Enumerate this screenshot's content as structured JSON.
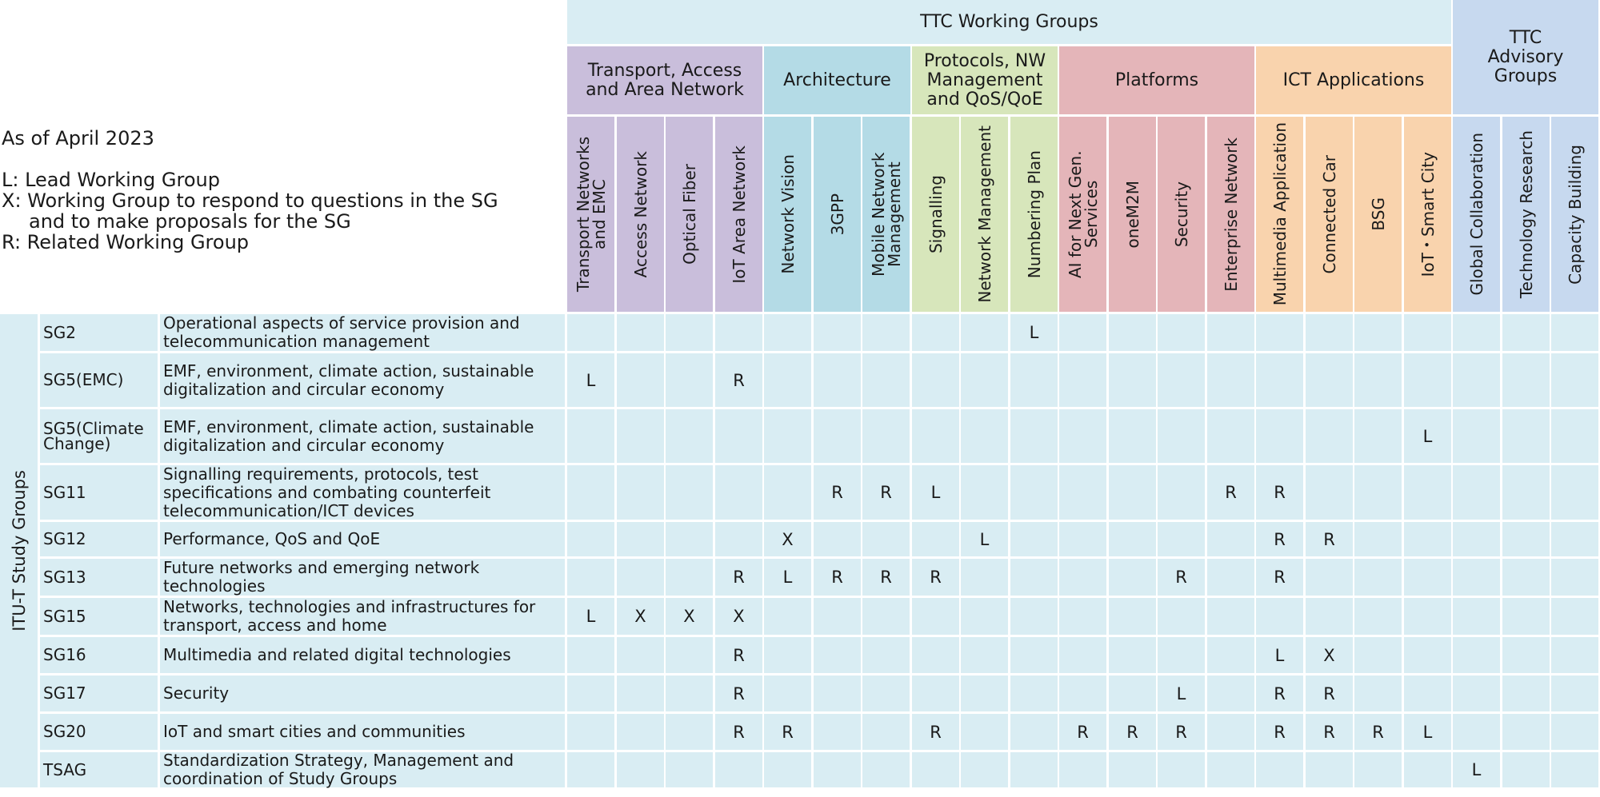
{
  "legend": {
    "as_of": "As of April 2023",
    "lines": [
      "L: Lead Working Group",
      "X: Working Group to respond to questions in the SG",
      "and to make proposals for the SG",
      "R: Related Working Group"
    ]
  },
  "header": {
    "working_groups_title": "TTC Working Groups",
    "advisory_title": "TTC Advisory Groups",
    "study_groups_title": "ITU-T Study Groups"
  },
  "categories": [
    {
      "name": "Transport, Access and Area Network",
      "color": "#c9bedb"
    },
    {
      "name": "Architecture",
      "color": "#b4dbe6"
    },
    {
      "name": "Protocols, NW Management and QoS/QoE",
      "color": "#d7e6bb"
    },
    {
      "name": "Platforms",
      "color": "#e4b5b9"
    },
    {
      "name": "ICT Applications",
      "color": "#f9d3ad"
    },
    {
      "name": "TTC Advisory Groups",
      "color": "#c7d9ef"
    }
  ],
  "columns": [
    {
      "label": "Transport Networks and EMC",
      "cat": 0
    },
    {
      "label": "Access Network",
      "cat": 0
    },
    {
      "label": "Optical Fiber",
      "cat": 0
    },
    {
      "label": "IoT Area Network",
      "cat": 0
    },
    {
      "label": "Network Vision",
      "cat": 1
    },
    {
      "label": "3GPP",
      "cat": 1
    },
    {
      "label": "Mobile Network Management",
      "cat": 1
    },
    {
      "label": "Signalling",
      "cat": 2
    },
    {
      "label": "Network Management",
      "cat": 2
    },
    {
      "label": "Numbering Plan",
      "cat": 2
    },
    {
      "label": "AI for Next Gen. Services",
      "cat": 3
    },
    {
      "label": "oneM2M",
      "cat": 3
    },
    {
      "label": "Security",
      "cat": 3
    },
    {
      "label": "Enterprise Network",
      "cat": 3
    },
    {
      "label": "Multimedia Application",
      "cat": 4
    },
    {
      "label": "Connected Car",
      "cat": 4
    },
    {
      "label": "BSG",
      "cat": 4
    },
    {
      "label": "IoT・Smart City",
      "cat": 4
    },
    {
      "label": "Global Collaboration",
      "cat": 5
    },
    {
      "label": "Technology Research",
      "cat": 5
    },
    {
      "label": "Capacity Building",
      "cat": 5
    }
  ],
  "rows": [
    {
      "sg": "SG2",
      "desc": "Operational aspects of service provision and telecommunication management",
      "marks": [
        "",
        "",
        "",
        "",
        "",
        "",
        "",
        "",
        "",
        "L",
        "",
        "",
        "",
        "",
        "",
        "",
        "",
        "",
        "",
        "",
        ""
      ]
    },
    {
      "sg": "SG5(EMC)",
      "desc": "EMF, environment, climate action, sustainable digitalization and circular economy",
      "marks": [
        "L",
        "",
        "",
        "R",
        "",
        "",
        "",
        "",
        "",
        "",
        "",
        "",
        "",
        "",
        "",
        "",
        "",
        "",
        "",
        "",
        ""
      ]
    },
    {
      "sg": "SG5(Climate Change)",
      "desc": "EMF, environment, climate action, sustainable digitalization and circular economy",
      "marks": [
        "",
        "",
        "",
        "",
        "",
        "",
        "",
        "",
        "",
        "",
        "",
        "",
        "",
        "",
        "",
        "",
        "",
        "L",
        "",
        "",
        ""
      ]
    },
    {
      "sg": "SG11",
      "desc": "Signalling requirements, protocols, test specifications and combating counterfeit telecommunication/ICT devices",
      "marks": [
        "",
        "",
        "",
        "",
        "",
        "R",
        "R",
        "L",
        "",
        "",
        "",
        "",
        "",
        "R",
        "R",
        "",
        "",
        "",
        "",
        "",
        ""
      ]
    },
    {
      "sg": "SG12",
      "desc": "Performance, QoS and QoE",
      "marks": [
        "",
        "",
        "",
        "",
        "X",
        "",
        "",
        "",
        "L",
        "",
        "",
        "",
        "",
        "",
        "R",
        "R",
        "",
        "",
        "",
        "",
        ""
      ]
    },
    {
      "sg": "SG13",
      "desc": "Future networks and emerging network technologies",
      "marks": [
        "",
        "",
        "",
        "R",
        "L",
        "R",
        "R",
        "R",
        "",
        "",
        "",
        "",
        "R",
        "",
        "R",
        "",
        "",
        "",
        "",
        "",
        ""
      ]
    },
    {
      "sg": "SG15",
      "desc": "Networks, technologies and infrastructures for transport, access and home",
      "marks": [
        "L",
        "X",
        "X",
        "X",
        "",
        "",
        "",
        "",
        "",
        "",
        "",
        "",
        "",
        "",
        "",
        "",
        "",
        "",
        "",
        "",
        ""
      ]
    },
    {
      "sg": "SG16",
      "desc": "Multimedia and related digital technologies",
      "marks": [
        "",
        "",
        "",
        "R",
        "",
        "",
        "",
        "",
        "",
        "",
        "",
        "",
        "",
        "",
        "L",
        "X",
        "",
        "",
        "",
        "",
        ""
      ]
    },
    {
      "sg": "SG17",
      "desc": "Security",
      "marks": [
        "",
        "",
        "",
        "R",
        "",
        "",
        "",
        "",
        "",
        "",
        "",
        "",
        "L",
        "",
        "R",
        "R",
        "",
        "",
        "",
        "",
        ""
      ]
    },
    {
      "sg": "SG20",
      "desc": "IoT and smart cities and communities",
      "marks": [
        "",
        "",
        "",
        "R",
        "R",
        "",
        "",
        "R",
        "",
        "",
        "R",
        "R",
        "R",
        "",
        "R",
        "R",
        "R",
        "L",
        "",
        "",
        ""
      ]
    },
    {
      "sg": "TSAG",
      "desc": "Standardization Strategy, Management and coordination of Study Groups",
      "marks": [
        "",
        "",
        "",
        "",
        "",
        "",
        "",
        "",
        "",
        "",
        "",
        "",
        "",
        "",
        "",
        "",
        "",
        "",
        "L",
        "",
        ""
      ]
    }
  ],
  "colors": {
    "top_band": "#d9edf3",
    "body_row": "#d9edf3",
    "grid_line": "#ffffff"
  }
}
